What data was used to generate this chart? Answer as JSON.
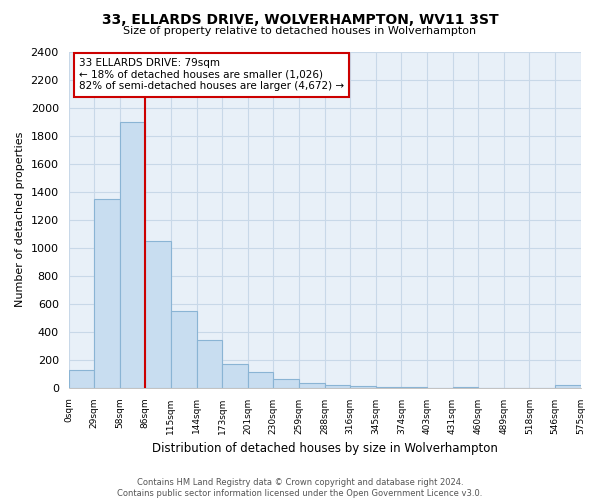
{
  "title": "33, ELLARDS DRIVE, WOLVERHAMPTON, WV11 3ST",
  "subtitle": "Size of property relative to detached houses in Wolverhampton",
  "xlabel": "Distribution of detached houses by size in Wolverhampton",
  "ylabel": "Number of detached properties",
  "annotation_line1": "33 ELLARDS DRIVE: 79sqm",
  "annotation_line2": "← 18% of detached houses are smaller (1,026)",
  "annotation_line3": "82% of semi-detached houses are larger (4,672) →",
  "footer1": "Contains HM Land Registry data © Crown copyright and database right 2024.",
  "footer2": "Contains public sector information licensed under the Open Government Licence v3.0.",
  "bar_color": "#c8ddf0",
  "bar_edge_color": "#8ab4d4",
  "vline_color": "#cc0000",
  "annotation_box_color": "#ffffff",
  "annotation_box_edge": "#cc0000",
  "grid_color": "#c8d8e8",
  "plot_bg_color": "#e8f0f8",
  "background_color": "#ffffff",
  "bin_labels": [
    "0sqm",
    "29sqm",
    "58sqm",
    "86sqm",
    "115sqm",
    "144sqm",
    "173sqm",
    "201sqm",
    "230sqm",
    "259sqm",
    "288sqm",
    "316sqm",
    "345sqm",
    "374sqm",
    "403sqm",
    "431sqm",
    "460sqm",
    "489sqm",
    "518sqm",
    "546sqm",
    "575sqm"
  ],
  "bar_values": [
    125,
    1350,
    1900,
    1050,
    550,
    340,
    165,
    110,
    60,
    30,
    18,
    10,
    5,
    3,
    0,
    1,
    0,
    0,
    0,
    20
  ],
  "vline_x": 3,
  "ylim": [
    0,
    2400
  ],
  "yticks": [
    0,
    200,
    400,
    600,
    800,
    1000,
    1200,
    1400,
    1600,
    1800,
    2000,
    2200,
    2400
  ]
}
